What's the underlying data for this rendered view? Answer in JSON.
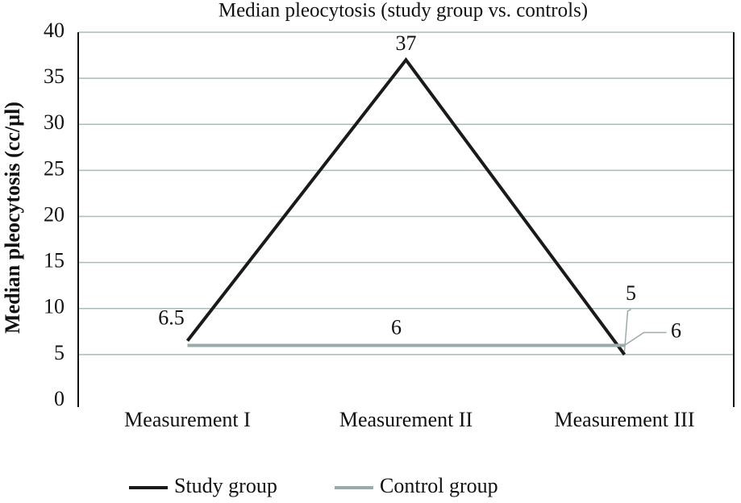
{
  "chart_data": {
    "type": "line",
    "title": "Median pleocytosis (study group vs. controls)",
    "y_label": "Median pleocytosis (cc/µl)",
    "categories": [
      "Measurement I",
      "Measurement II",
      "Measurement III"
    ],
    "series": [
      {
        "name": "Study group",
        "color": "#1a1a1a",
        "values": [
          6.5,
          37,
          5
        ]
      },
      {
        "name": "Control group",
        "color": "#9aabab",
        "values": [
          6,
          6,
          6
        ],
        "value_labels": [
          null,
          "6",
          "6"
        ]
      }
    ],
    "ylim": [
      0,
      40
    ],
    "yticks": [
      0,
      5,
      10,
      15,
      20,
      25,
      30,
      35,
      40
    ],
    "grid": true
  }
}
